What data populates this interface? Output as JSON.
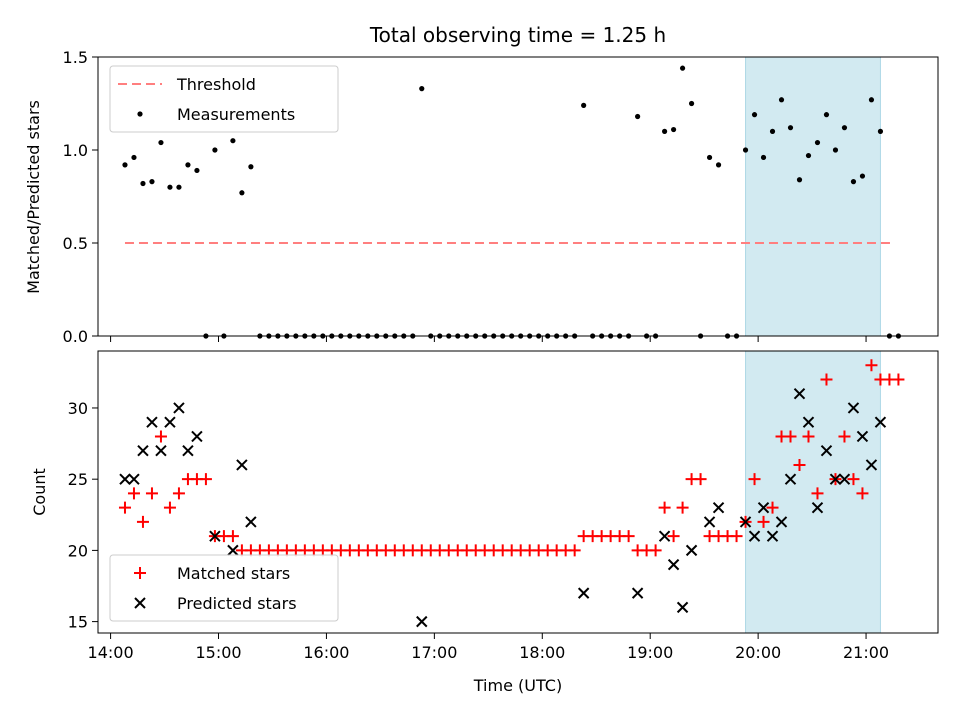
{
  "chart_data": [
    {
      "type": "scatter",
      "title": "Total observing time = 1.25 h",
      "ylabel": "Matched/Predicted stars",
      "xlabel": "",
      "x_axis_type": "time",
      "xlim": [
        "13:53",
        "21:40"
      ],
      "ylim": [
        0,
        1.5
      ],
      "yticks": [
        "0.0",
        "0.5",
        "1.0",
        "1.5"
      ],
      "legend_position": "upper-left",
      "highlight_span": {
        "from": "19:53",
        "to": "21:08",
        "color": "#add8e6"
      },
      "threshold": {
        "name": "Threshold",
        "value": 0.5,
        "from": "14:08",
        "to": "21:16",
        "color": "#ff8080"
      },
      "series": [
        {
          "name": "Measurements",
          "color": "#000000",
          "points": [
            [
              "14:08",
              0.92
            ],
            [
              "14:13",
              0.96
            ],
            [
              "14:18",
              0.82
            ],
            [
              "14:23",
              0.83
            ],
            [
              "14:28",
              1.04
            ],
            [
              "14:33",
              0.8
            ],
            [
              "14:38",
              0.8
            ],
            [
              "14:43",
              0.92
            ],
            [
              "14:48",
              0.89
            ],
            [
              "14:53",
              0.0
            ],
            [
              "14:58",
              1.0
            ],
            [
              "15:03",
              0.0
            ],
            [
              "15:08",
              1.05
            ],
            [
              "15:13",
              0.77
            ],
            [
              "15:18",
              0.91
            ],
            [
              "15:23",
              0.0
            ],
            [
              "15:28",
              0.0
            ],
            [
              "15:33",
              0.0
            ],
            [
              "15:38",
              0.0
            ],
            [
              "15:43",
              0.0
            ],
            [
              "15:48",
              0.0
            ],
            [
              "15:53",
              0.0
            ],
            [
              "15:58",
              0.0
            ],
            [
              "16:03",
              0.0
            ],
            [
              "16:08",
              0.0
            ],
            [
              "16:13",
              0.0
            ],
            [
              "16:18",
              0.0
            ],
            [
              "16:23",
              0.0
            ],
            [
              "16:28",
              0.0
            ],
            [
              "16:33",
              0.0
            ],
            [
              "16:38",
              0.0
            ],
            [
              "16:43",
              0.0
            ],
            [
              "16:48",
              0.0
            ],
            [
              "16:53",
              1.33
            ],
            [
              "16:58",
              0.0
            ],
            [
              "17:03",
              0.0
            ],
            [
              "17:08",
              0.0
            ],
            [
              "17:13",
              0.0
            ],
            [
              "17:18",
              0.0
            ],
            [
              "17:23",
              0.0
            ],
            [
              "17:28",
              0.0
            ],
            [
              "17:33",
              0.0
            ],
            [
              "17:38",
              0.0
            ],
            [
              "17:43",
              0.0
            ],
            [
              "17:48",
              0.0
            ],
            [
              "17:53",
              0.0
            ],
            [
              "17:58",
              0.0
            ],
            [
              "18:03",
              0.0
            ],
            [
              "18:08",
              0.0
            ],
            [
              "18:13",
              0.0
            ],
            [
              "18:18",
              0.0
            ],
            [
              "18:23",
              1.24
            ],
            [
              "18:28",
              0.0
            ],
            [
              "18:33",
              0.0
            ],
            [
              "18:38",
              0.0
            ],
            [
              "18:43",
              0.0
            ],
            [
              "18:48",
              0.0
            ],
            [
              "18:53",
              1.18
            ],
            [
              "18:58",
              0.0
            ],
            [
              "19:03",
              0.0
            ],
            [
              "19:08",
              1.1
            ],
            [
              "19:13",
              1.11
            ],
            [
              "19:18",
              1.44
            ],
            [
              "19:23",
              1.25
            ],
            [
              "19:28",
              0.0
            ],
            [
              "19:33",
              0.96
            ],
            [
              "19:38",
              0.92
            ],
            [
              "19:43",
              0.0
            ],
            [
              "19:48",
              0.0
            ],
            [
              "19:53",
              1.0
            ],
            [
              "19:58",
              1.19
            ],
            [
              "20:03",
              0.96
            ],
            [
              "20:08",
              1.1
            ],
            [
              "20:13",
              1.27
            ],
            [
              "20:18",
              1.12
            ],
            [
              "20:23",
              0.84
            ],
            [
              "20:28",
              0.97
            ],
            [
              "20:33",
              1.04
            ],
            [
              "20:38",
              1.19
            ],
            [
              "20:43",
              1.0
            ],
            [
              "20:48",
              1.12
            ],
            [
              "20:53",
              0.83
            ],
            [
              "20:58",
              0.86
            ],
            [
              "21:03",
              1.27
            ],
            [
              "21:08",
              1.1
            ],
            [
              "21:13",
              0.0
            ],
            [
              "21:18",
              0.0
            ]
          ]
        }
      ]
    },
    {
      "type": "scatter",
      "title": "",
      "ylabel": "Count",
      "xlabel": "Time (UTC)",
      "x_axis_type": "time",
      "xlim": [
        "13:53",
        "21:40"
      ],
      "ylim": [
        14.2,
        34.0
      ],
      "yticks": [
        "15",
        "20",
        "25",
        "30"
      ],
      "xticks": [
        "14:00",
        "15:00",
        "16:00",
        "17:00",
        "18:00",
        "19:00",
        "20:00",
        "21:00"
      ],
      "legend_position": "lower-left",
      "highlight_span": {
        "from": "19:53",
        "to": "21:08",
        "color": "#add8e6"
      },
      "series": [
        {
          "name": "Matched stars",
          "marker": "plus",
          "color": "#ff0000",
          "points": [
            [
              "14:08",
              23
            ],
            [
              "14:13",
              24
            ],
            [
              "14:18",
              22
            ],
            [
              "14:23",
              24
            ],
            [
              "14:28",
              28
            ],
            [
              "14:33",
              23
            ],
            [
              "14:38",
              24
            ],
            [
              "14:43",
              25
            ],
            [
              "14:48",
              25
            ],
            [
              "14:53",
              25
            ],
            [
              "14:58",
              21
            ],
            [
              "15:03",
              21
            ],
            [
              "15:08",
              21
            ],
            [
              "15:13",
              20
            ],
            [
              "15:18",
              20
            ],
            [
              "15:23",
              20
            ],
            [
              "15:28",
              20
            ],
            [
              "15:33",
              20
            ],
            [
              "15:38",
              20
            ],
            [
              "15:43",
              20
            ],
            [
              "15:48",
              20
            ],
            [
              "15:53",
              20
            ],
            [
              "15:58",
              20
            ],
            [
              "16:03",
              20
            ],
            [
              "16:08",
              20
            ],
            [
              "16:13",
              20
            ],
            [
              "16:18",
              20
            ],
            [
              "16:23",
              20
            ],
            [
              "16:28",
              20
            ],
            [
              "16:33",
              20
            ],
            [
              "16:38",
              20
            ],
            [
              "16:43",
              20
            ],
            [
              "16:48",
              20
            ],
            [
              "16:53",
              20
            ],
            [
              "16:58",
              20
            ],
            [
              "17:03",
              20
            ],
            [
              "17:08",
              20
            ],
            [
              "17:13",
              20
            ],
            [
              "17:18",
              20
            ],
            [
              "17:23",
              20
            ],
            [
              "17:28",
              20
            ],
            [
              "17:33",
              20
            ],
            [
              "17:38",
              20
            ],
            [
              "17:43",
              20
            ],
            [
              "17:48",
              20
            ],
            [
              "17:53",
              20
            ],
            [
              "17:58",
              20
            ],
            [
              "18:03",
              20
            ],
            [
              "18:08",
              20
            ],
            [
              "18:13",
              20
            ],
            [
              "18:18",
              20
            ],
            [
              "18:23",
              21
            ],
            [
              "18:28",
              21
            ],
            [
              "18:33",
              21
            ],
            [
              "18:38",
              21
            ],
            [
              "18:43",
              21
            ],
            [
              "18:48",
              21
            ],
            [
              "18:53",
              20
            ],
            [
              "18:58",
              20
            ],
            [
              "19:03",
              20
            ],
            [
              "19:08",
              23
            ],
            [
              "19:13",
              21
            ],
            [
              "19:18",
              23
            ],
            [
              "19:23",
              25
            ],
            [
              "19:28",
              25
            ],
            [
              "19:33",
              21
            ],
            [
              "19:38",
              21
            ],
            [
              "19:43",
              21
            ],
            [
              "19:48",
              21
            ],
            [
              "19:53",
              22
            ],
            [
              "19:58",
              25
            ],
            [
              "20:03",
              22
            ],
            [
              "20:08",
              23
            ],
            [
              "20:13",
              28
            ],
            [
              "20:18",
              28
            ],
            [
              "20:23",
              26
            ],
            [
              "20:28",
              28
            ],
            [
              "20:33",
              24
            ],
            [
              "20:38",
              32
            ],
            [
              "20:43",
              25
            ],
            [
              "20:48",
              28
            ],
            [
              "20:53",
              25
            ],
            [
              "20:58",
              24
            ],
            [
              "21:03",
              33
            ],
            [
              "21:08",
              32
            ],
            [
              "21:13",
              32
            ],
            [
              "21:18",
              32
            ]
          ]
        },
        {
          "name": "Predicted stars",
          "marker": "x",
          "color": "#000000",
          "points": [
            [
              "14:08",
              25
            ],
            [
              "14:13",
              25
            ],
            [
              "14:18",
              27
            ],
            [
              "14:23",
              29
            ],
            [
              "14:28",
              27
            ],
            [
              "14:33",
              29
            ],
            [
              "14:38",
              30
            ],
            [
              "14:43",
              27
            ],
            [
              "14:48",
              28
            ],
            [
              "14:58",
              21
            ],
            [
              "15:08",
              20
            ],
            [
              "15:13",
              26
            ],
            [
              "15:18",
              22
            ],
            [
              "16:53",
              15
            ],
            [
              "18:23",
              17
            ],
            [
              "18:53",
              17
            ],
            [
              "19:08",
              21
            ],
            [
              "19:13",
              19
            ],
            [
              "19:18",
              16
            ],
            [
              "19:23",
              20
            ],
            [
              "19:33",
              22
            ],
            [
              "19:38",
              23
            ],
            [
              "19:53",
              22
            ],
            [
              "19:58",
              21
            ],
            [
              "20:03",
              23
            ],
            [
              "20:08",
              21
            ],
            [
              "20:13",
              22
            ],
            [
              "20:18",
              25
            ],
            [
              "20:23",
              31
            ],
            [
              "20:28",
              29
            ],
            [
              "20:33",
              23
            ],
            [
              "20:38",
              27
            ],
            [
              "20:43",
              25
            ],
            [
              "20:48",
              25
            ],
            [
              "20:53",
              30
            ],
            [
              "20:58",
              28
            ],
            [
              "21:03",
              26
            ],
            [
              "21:08",
              29
            ]
          ]
        }
      ]
    }
  ]
}
